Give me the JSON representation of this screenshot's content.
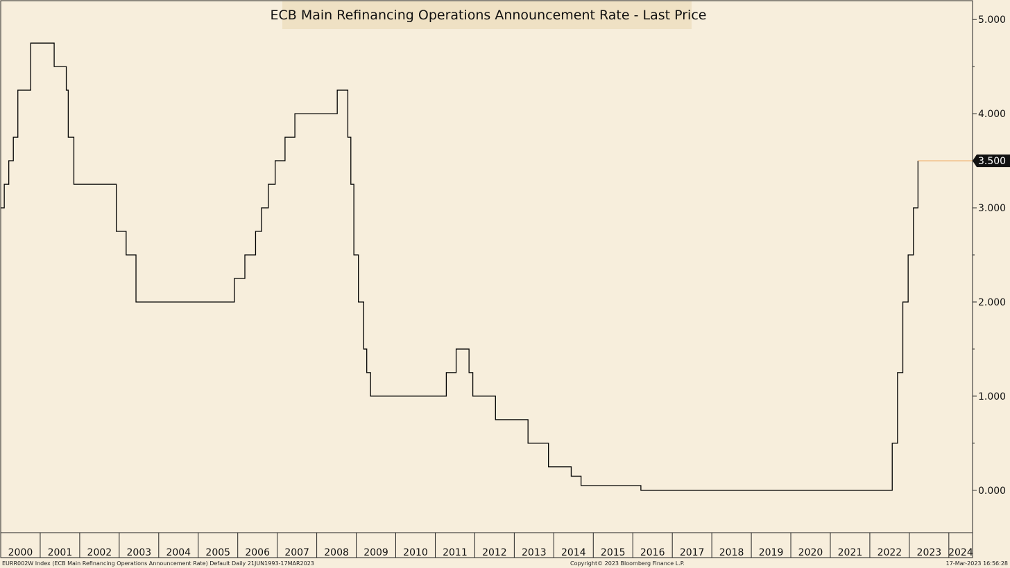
{
  "footer": {
    "left": "EURR002W Index (ECB Main Refinancing Operations Announcement Rate) Default  Daily 21JUN1993-17MAR2023",
    "center": "Copyright© 2023 Bloomberg Finance L.P.",
    "right": "17-Mar-2023 16:56:28"
  },
  "chart_data": {
    "type": "line",
    "title": "",
    "legend": [
      "ECB Main Refinancing Operations Announcement Rate - Last Price"
    ],
    "xlabel": "",
    "ylabel": "",
    "x_ticks": [
      "2000",
      "2001",
      "2002",
      "2003",
      "2004",
      "2005",
      "2006",
      "2007",
      "2008",
      "2009",
      "2010",
      "2011",
      "2012",
      "2013",
      "2014",
      "2015",
      "2016",
      "2017",
      "2018",
      "2019",
      "2020",
      "2021",
      "2022",
      "2023",
      "2024"
    ],
    "y_ticks": [
      "0.000",
      "1.000",
      "2.000",
      "3.000",
      "4.000",
      "5.000"
    ],
    "xlim": [
      2000.0,
      2024.6
    ],
    "ylim": [
      -0.45,
      5.2
    ],
    "grid": false,
    "axis_side": "right",
    "last_value_label": "3.500",
    "colors": {
      "line": "#000000",
      "last_value_line": "#f0a050",
      "last_value_box": "#111111"
    },
    "series": [
      {
        "name": "ECB Main Refinancing Operations Announcement Rate - Last Price",
        "step": true,
        "x": [
          "2000-01-01",
          "2000-02-03",
          "2000-03-16",
          "2000-04-27",
          "2000-06-08",
          "2000-10-05",
          "2001-05-10",
          "2001-08-30",
          "2001-09-17",
          "2001-11-08",
          "2002-12-05",
          "2003-03-06",
          "2003-06-05",
          "2005-12-01",
          "2006-03-08",
          "2006-06-15",
          "2006-08-09",
          "2006-10-11",
          "2006-12-13",
          "2007-03-14",
          "2007-06-13",
          "2008-07-09",
          "2008-10-15",
          "2008-11-12",
          "2008-12-10",
          "2009-01-21",
          "2009-03-11",
          "2009-04-08",
          "2009-05-13",
          "2011-04-13",
          "2011-07-13",
          "2011-11-09",
          "2011-12-14",
          "2012-07-11",
          "2013-05-08",
          "2013-11-13",
          "2014-06-11",
          "2014-09-10",
          "2016-03-16",
          "2022-07-27",
          "2022-09-14",
          "2022-11-02",
          "2022-12-21",
          "2023-02-08",
          "2023-03-22"
        ],
        "values": [
          3.0,
          3.25,
          3.5,
          3.75,
          4.25,
          4.75,
          4.5,
          4.25,
          3.75,
          3.25,
          2.75,
          2.5,
          2.0,
          2.25,
          2.5,
          2.75,
          3.0,
          3.25,
          3.5,
          3.75,
          4.0,
          4.25,
          3.75,
          3.25,
          2.5,
          2.0,
          1.5,
          1.25,
          1.0,
          1.25,
          1.5,
          1.25,
          1.0,
          0.75,
          0.5,
          0.25,
          0.15,
          0.05,
          0.0,
          0.5,
          1.25,
          2.0,
          2.5,
          3.0,
          3.5
        ]
      }
    ],
    "last_value_extension": {
      "from": "2023-03-22",
      "to": "2024.6",
      "value": 3.5
    }
  }
}
